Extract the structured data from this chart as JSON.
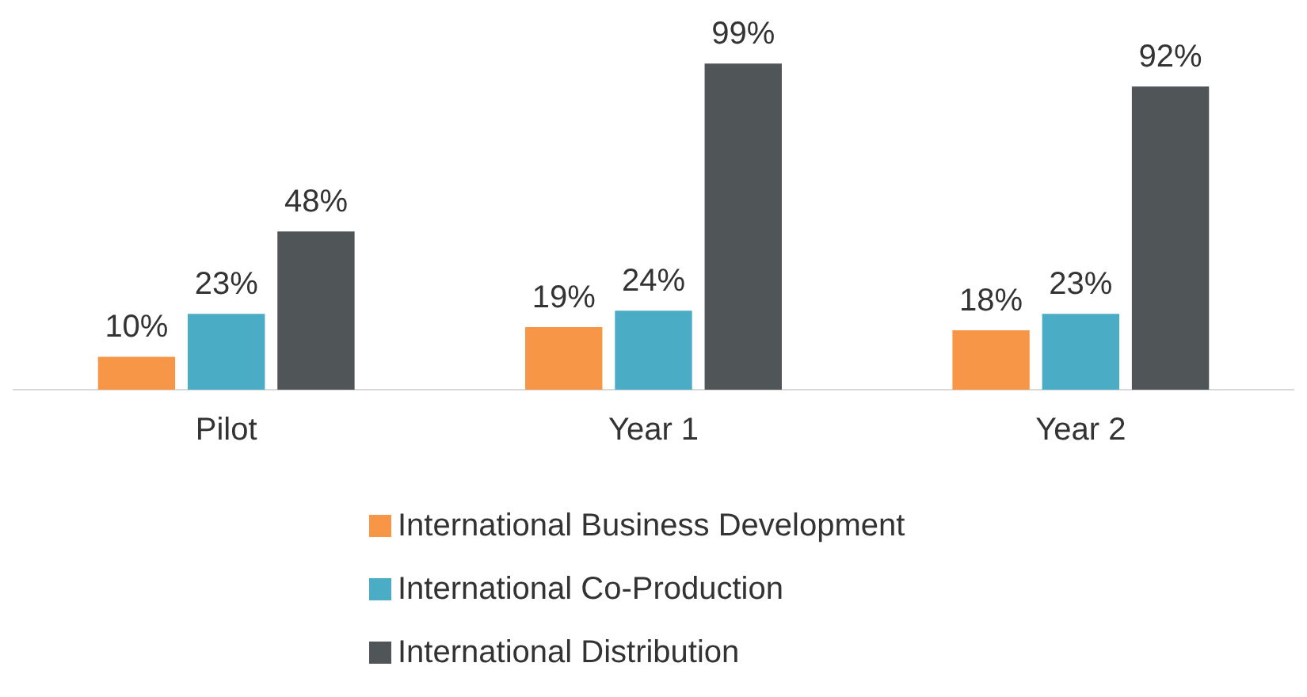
{
  "chart_data": {
    "type": "bar",
    "categories": [
      "Pilot",
      "Year 1",
      "Year 2"
    ],
    "series": [
      {
        "name": "International Business Development",
        "color": "#f79646",
        "values": [
          10,
          19,
          18
        ],
        "value_labels": [
          "10%",
          "19%",
          "18%"
        ]
      },
      {
        "name": "International Co-Production",
        "color": "#4bacc6",
        "values": [
          23,
          24,
          23
        ],
        "value_labels": [
          "23%",
          "24%",
          "23%"
        ]
      },
      {
        "name": "International Distribution",
        "color": "#505558",
        "values": [
          48,
          99,
          92
        ],
        "value_labels": [
          "48%",
          "99%",
          "92%"
        ]
      }
    ],
    "grid": false,
    "legend": "bottom",
    "tick_labels": "x"
  }
}
